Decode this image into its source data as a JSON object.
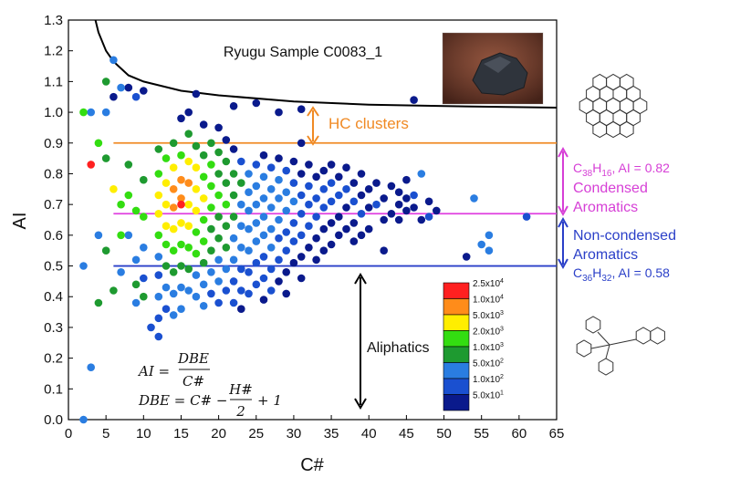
{
  "chart_data": {
    "type": "scatter",
    "title": "Ryugu Sample C0083_1",
    "xlabel": "C#",
    "ylabel": "AI",
    "xlim": [
      0,
      65
    ],
    "ylim": [
      0,
      1.3
    ],
    "xticks": [
      "0",
      "5",
      "10",
      "15",
      "20",
      "25",
      "30",
      "35",
      "40",
      "45",
      "50",
      "55",
      "60",
      "65"
    ],
    "yticks": [
      "0.0",
      "0.1",
      "0.2",
      "0.3",
      "0.4",
      "0.5",
      "0.6",
      "0.7",
      "0.8",
      "0.9",
      "1.0",
      "1.1",
      "1.2",
      "1.3"
    ],
    "reference_lines": [
      {
        "name": "HC clusters threshold",
        "y": 0.9,
        "x_start": 6,
        "color": "#f08a24"
      },
      {
        "name": "Condensed aromatics threshold",
        "y": 0.67,
        "x_start": 6,
        "color": "#e040e0"
      },
      {
        "name": "Aromatics threshold",
        "y": 0.5,
        "x_start": 6,
        "color": "#2a3fc8"
      }
    ],
    "boundary_curve": {
      "name": "upper limit",
      "color": "#000000",
      "points": [
        [
          3.6,
          1.3
        ],
        [
          4,
          1.26
        ],
        [
          5,
          1.2
        ],
        [
          6,
          1.165
        ],
        [
          8,
          1.12
        ],
        [
          10,
          1.1
        ],
        [
          15,
          1.07
        ],
        [
          20,
          1.055
        ],
        [
          30,
          1.035
        ],
        [
          40,
          1.025
        ],
        [
          50,
          1.02
        ],
        [
          65,
          1.015
        ]
      ]
    },
    "legend": {
      "title": "",
      "placement": "bottom-right",
      "entries": [
        {
          "label": "2.5x10",
          "exp": "4",
          "color": "#ff2020"
        },
        {
          "label": "1.0x10",
          "exp": "4",
          "color": "#ff8c1a"
        },
        {
          "label": "5.0x10",
          "exp": "3",
          "color": "#ffee00"
        },
        {
          "label": "2.0x10",
          "exp": "3",
          "color": "#33dd11"
        },
        {
          "label": "1.0x10",
          "exp": "3",
          "color": "#1e9a30"
        },
        {
          "label": "5.0x10",
          "exp": "2",
          "color": "#2a7de1"
        },
        {
          "label": "1.0x10",
          "exp": "2",
          "color": "#1a50d0"
        },
        {
          "label": "5.0x10",
          "exp": "1",
          "color": "#0a1a8c"
        }
      ]
    },
    "points": [
      [
        2,
        1.0,
        "#33dd11"
      ],
      [
        3,
        1.0,
        "#2a7de1"
      ],
      [
        3,
        0.83,
        "#ff2020"
      ],
      [
        2,
        0.5,
        "#2a7de1"
      ],
      [
        2,
        0.0,
        "#2a7de1"
      ],
      [
        3,
        0.17,
        "#2a7de1"
      ],
      [
        4,
        0.38,
        "#1e9a30"
      ],
      [
        5,
        1.1,
        "#1e9a30"
      ],
      [
        6,
        1.17,
        "#2a7de1"
      ],
      [
        5,
        1.0,
        "#2a7de1"
      ],
      [
        6,
        1.05,
        "#0a1a8c"
      ],
      [
        7,
        1.08,
        "#2a7de1"
      ],
      [
        8,
        1.08,
        "#0a1a8c"
      ],
      [
        9,
        1.05,
        "#1a50d0"
      ],
      [
        10,
        1.07,
        "#0a1a8c"
      ],
      [
        4,
        0.9,
        "#33dd11"
      ],
      [
        5,
        0.85,
        "#1e9a30"
      ],
      [
        4,
        0.6,
        "#2a7de1"
      ],
      [
        5,
        0.55,
        "#1e9a30"
      ],
      [
        6,
        0.75,
        "#ffee00"
      ],
      [
        6,
        0.42,
        "#1e9a30"
      ],
      [
        7,
        0.7,
        "#33dd11"
      ],
      [
        7,
        0.6,
        "#33dd11"
      ],
      [
        7,
        0.48,
        "#2a7de1"
      ],
      [
        8,
        0.83,
        "#1e9a30"
      ],
      [
        8,
        0.73,
        "#33dd11"
      ],
      [
        8,
        0.6,
        "#2a7de1"
      ],
      [
        9,
        0.68,
        "#33dd11"
      ],
      [
        9,
        0.52,
        "#2a7de1"
      ],
      [
        9,
        0.44,
        "#1e9a30"
      ],
      [
        9,
        0.38,
        "#2a7de1"
      ],
      [
        10,
        0.78,
        "#1e9a30"
      ],
      [
        10,
        0.66,
        "#33dd11"
      ],
      [
        10,
        0.56,
        "#2a7de1"
      ],
      [
        10,
        0.46,
        "#1a50d0"
      ],
      [
        10,
        0.4,
        "#1e9a30"
      ],
      [
        11,
        0.3,
        "#1a50d0"
      ],
      [
        12,
        0.27,
        "#1a50d0"
      ],
      [
        12,
        0.88,
        "#1e9a30"
      ],
      [
        12,
        0.8,
        "#33dd11"
      ],
      [
        12,
        0.73,
        "#ffee00"
      ],
      [
        12,
        0.67,
        "#ffee00"
      ],
      [
        12,
        0.6,
        "#33dd11"
      ],
      [
        12,
        0.53,
        "#2a7de1"
      ],
      [
        12,
        0.47,
        "#1a50d0"
      ],
      [
        12,
        0.4,
        "#2a7de1"
      ],
      [
        12,
        0.33,
        "#1a50d0"
      ],
      [
        13,
        0.85,
        "#33dd11"
      ],
      [
        13,
        0.77,
        "#ffee00"
      ],
      [
        13,
        0.7,
        "#ffee00"
      ],
      [
        13,
        0.63,
        "#ffee00"
      ],
      [
        13,
        0.57,
        "#33dd11"
      ],
      [
        13,
        0.5,
        "#1e9a30"
      ],
      [
        13,
        0.43,
        "#2a7de1"
      ],
      [
        13,
        0.36,
        "#1a50d0"
      ],
      [
        14,
        0.9,
        "#1e9a30"
      ],
      [
        14,
        0.82,
        "#ffee00"
      ],
      [
        14,
        0.75,
        "#ff8c1a"
      ],
      [
        14,
        0.69,
        "#ff8c1a"
      ],
      [
        14,
        0.62,
        "#ffee00"
      ],
      [
        14,
        0.55,
        "#33dd11"
      ],
      [
        14,
        0.48,
        "#1e9a30"
      ],
      [
        14,
        0.41,
        "#2a7de1"
      ],
      [
        14,
        0.34,
        "#2a7de1"
      ],
      [
        15,
        0.98,
        "#0a1a8c"
      ],
      [
        15,
        0.86,
        "#33dd11"
      ],
      [
        15,
        0.78,
        "#ff8c1a"
      ],
      [
        15,
        0.72,
        "#ff8c1a"
      ],
      [
        15,
        0.7,
        "#ff2020"
      ],
      [
        15,
        0.64,
        "#ffee00"
      ],
      [
        15,
        0.57,
        "#33dd11"
      ],
      [
        15,
        0.5,
        "#1e9a30"
      ],
      [
        15,
        0.43,
        "#2a7de1"
      ],
      [
        15,
        0.36,
        "#2a7de1"
      ],
      [
        16,
        1.0,
        "#0a1a8c"
      ],
      [
        16,
        0.93,
        "#1e9a30"
      ],
      [
        16,
        0.84,
        "#ffee00"
      ],
      [
        16,
        0.77,
        "#ff8c1a"
      ],
      [
        16,
        0.7,
        "#ffee00"
      ],
      [
        16,
        0.63,
        "#ffee00"
      ],
      [
        16,
        0.56,
        "#33dd11"
      ],
      [
        16,
        0.49,
        "#1e9a30"
      ],
      [
        16,
        0.42,
        "#2a7de1"
      ],
      [
        17,
        0.89,
        "#1e9a30"
      ],
      [
        17,
        0.82,
        "#ffee00"
      ],
      [
        17,
        0.75,
        "#ffee00"
      ],
      [
        17,
        0.68,
        "#ffee00"
      ],
      [
        17,
        0.61,
        "#33dd11"
      ],
      [
        17,
        0.54,
        "#33dd11"
      ],
      [
        17,
        0.47,
        "#2a7de1"
      ],
      [
        17,
        0.4,
        "#2a7de1"
      ],
      [
        18,
        0.96,
        "#0a1a8c"
      ],
      [
        18,
        0.86,
        "#1e9a30"
      ],
      [
        18,
        0.79,
        "#33dd11"
      ],
      [
        18,
        0.72,
        "#ffee00"
      ],
      [
        18,
        0.65,
        "#33dd11"
      ],
      [
        18,
        0.58,
        "#33dd11"
      ],
      [
        18,
        0.51,
        "#1e9a30"
      ],
      [
        18,
        0.44,
        "#2a7de1"
      ],
      [
        18,
        0.37,
        "#2a7de1"
      ],
      [
        19,
        0.9,
        "#1e9a30"
      ],
      [
        19,
        0.83,
        "#33dd11"
      ],
      [
        19,
        0.76,
        "#33dd11"
      ],
      [
        19,
        0.69,
        "#33dd11"
      ],
      [
        19,
        0.62,
        "#1e9a30"
      ],
      [
        19,
        0.55,
        "#1e9a30"
      ],
      [
        19,
        0.48,
        "#2a7de1"
      ],
      [
        19,
        0.41,
        "#1a50d0"
      ],
      [
        20,
        0.95,
        "#0a1a8c"
      ],
      [
        20,
        0.87,
        "#1e9a30"
      ],
      [
        20,
        0.8,
        "#1e9a30"
      ],
      [
        20,
        0.73,
        "#33dd11"
      ],
      [
        20,
        0.66,
        "#1e9a30"
      ],
      [
        20,
        0.59,
        "#1e9a30"
      ],
      [
        20,
        0.52,
        "#2a7de1"
      ],
      [
        20,
        0.45,
        "#2a7de1"
      ],
      [
        20,
        0.38,
        "#1a50d0"
      ],
      [
        21,
        0.91,
        "#0a1a8c"
      ],
      [
        21,
        0.84,
        "#1e9a30"
      ],
      [
        21,
        0.77,
        "#1e9a30"
      ],
      [
        21,
        0.7,
        "#33dd11"
      ],
      [
        21,
        0.63,
        "#1e9a30"
      ],
      [
        21,
        0.56,
        "#1e9a30"
      ],
      [
        21,
        0.49,
        "#2a7de1"
      ],
      [
        21,
        0.42,
        "#1a50d0"
      ],
      [
        22,
        0.88,
        "#0a1a8c"
      ],
      [
        22,
        0.8,
        "#1e9a30"
      ],
      [
        22,
        0.73,
        "#1e9a30"
      ],
      [
        22,
        0.66,
        "#1e9a30"
      ],
      [
        22,
        0.59,
        "#2a7de1"
      ],
      [
        22,
        0.52,
        "#2a7de1"
      ],
      [
        22,
        0.45,
        "#1a50d0"
      ],
      [
        22,
        0.38,
        "#1a50d0"
      ],
      [
        23,
        0.84,
        "#1a50d0"
      ],
      [
        23,
        0.77,
        "#1e9a30"
      ],
      [
        23,
        0.7,
        "#2a7de1"
      ],
      [
        23,
        0.63,
        "#2a7de1"
      ],
      [
        23,
        0.56,
        "#2a7de1"
      ],
      [
        23,
        0.49,
        "#1a50d0"
      ],
      [
        23,
        0.42,
        "#1a50d0"
      ],
      [
        23,
        0.36,
        "#0a1a8c"
      ],
      [
        24,
        0.8,
        "#2a7de1"
      ],
      [
        24,
        0.74,
        "#2a7de1"
      ],
      [
        24,
        0.68,
        "#2a7de1"
      ],
      [
        24,
        0.62,
        "#2a7de1"
      ],
      [
        24,
        0.55,
        "#2a7de1"
      ],
      [
        24,
        0.48,
        "#1a50d0"
      ],
      [
        24,
        0.41,
        "#1a50d0"
      ],
      [
        25,
        0.83,
        "#1a50d0"
      ],
      [
        25,
        0.76,
        "#2a7de1"
      ],
      [
        25,
        0.7,
        "#2a7de1"
      ],
      [
        25,
        0.64,
        "#2a7de1"
      ],
      [
        25,
        0.58,
        "#2a7de1"
      ],
      [
        25,
        0.51,
        "#1a50d0"
      ],
      [
        25,
        0.44,
        "#1a50d0"
      ],
      [
        26,
        0.86,
        "#0a1a8c"
      ],
      [
        26,
        0.79,
        "#2a7de1"
      ],
      [
        26,
        0.72,
        "#2a7de1"
      ],
      [
        26,
        0.66,
        "#2a7de1"
      ],
      [
        26,
        0.6,
        "#2a7de1"
      ],
      [
        26,
        0.53,
        "#1a50d0"
      ],
      [
        26,
        0.46,
        "#1a50d0"
      ],
      [
        26,
        0.39,
        "#0a1a8c"
      ],
      [
        27,
        0.82,
        "#1a50d0"
      ],
      [
        27,
        0.75,
        "#2a7de1"
      ],
      [
        27,
        0.69,
        "#2a7de1"
      ],
      [
        27,
        0.62,
        "#2a7de1"
      ],
      [
        27,
        0.56,
        "#2a7de1"
      ],
      [
        27,
        0.49,
        "#1a50d0"
      ],
      [
        27,
        0.42,
        "#1a50d0"
      ],
      [
        28,
        0.85,
        "#0a1a8c"
      ],
      [
        28,
        0.78,
        "#2a7de1"
      ],
      [
        28,
        0.72,
        "#2a7de1"
      ],
      [
        28,
        0.65,
        "#2a7de1"
      ],
      [
        28,
        0.59,
        "#1a50d0"
      ],
      [
        28,
        0.52,
        "#1a50d0"
      ],
      [
        28,
        0.45,
        "#0a1a8c"
      ],
      [
        29,
        0.81,
        "#1a50d0"
      ],
      [
        29,
        0.74,
        "#2a7de1"
      ],
      [
        29,
        0.68,
        "#2a7de1"
      ],
      [
        29,
        0.61,
        "#1a50d0"
      ],
      [
        29,
        0.55,
        "#1a50d0"
      ],
      [
        29,
        0.48,
        "#0a1a8c"
      ],
      [
        29,
        0.41,
        "#0a1a8c"
      ],
      [
        30,
        0.84,
        "#0a1a8c"
      ],
      [
        30,
        0.77,
        "#1a50d0"
      ],
      [
        30,
        0.71,
        "#2a7de1"
      ],
      [
        30,
        0.64,
        "#1a50d0"
      ],
      [
        30,
        0.58,
        "#1a50d0"
      ],
      [
        30,
        0.51,
        "#0a1a8c"
      ],
      [
        31,
        0.9,
        "#0a1a8c"
      ],
      [
        31,
        0.8,
        "#0a1a8c"
      ],
      [
        31,
        0.73,
        "#1a50d0"
      ],
      [
        31,
        0.67,
        "#1a50d0"
      ],
      [
        31,
        0.6,
        "#1a50d0"
      ],
      [
        31,
        0.53,
        "#0a1a8c"
      ],
      [
        31,
        0.46,
        "#0a1a8c"
      ],
      [
        32,
        0.83,
        "#0a1a8c"
      ],
      [
        32,
        0.76,
        "#1a50d0"
      ],
      [
        32,
        0.7,
        "#1a50d0"
      ],
      [
        32,
        0.63,
        "#1a50d0"
      ],
      [
        32,
        0.56,
        "#0a1a8c"
      ],
      [
        33,
        0.79,
        "#0a1a8c"
      ],
      [
        33,
        0.72,
        "#1a50d0"
      ],
      [
        33,
        0.66,
        "#1a50d0"
      ],
      [
        33,
        0.59,
        "#0a1a8c"
      ],
      [
        33,
        0.52,
        "#0a1a8c"
      ],
      [
        34,
        0.81,
        "#0a1a8c"
      ],
      [
        34,
        0.75,
        "#1a50d0"
      ],
      [
        34,
        0.69,
        "#1a50d0"
      ],
      [
        34,
        0.62,
        "#0a1a8c"
      ],
      [
        34,
        0.55,
        "#0a1a8c"
      ],
      [
        35,
        0.83,
        "#0a1a8c"
      ],
      [
        35,
        0.77,
        "#1a50d0"
      ],
      [
        35,
        0.71,
        "#1a50d0"
      ],
      [
        35,
        0.64,
        "#0a1a8c"
      ],
      [
        35,
        0.57,
        "#0a1a8c"
      ],
      [
        36,
        0.79,
        "#0a1a8c"
      ],
      [
        36,
        0.73,
        "#1a50d0"
      ],
      [
        36,
        0.66,
        "#0a1a8c"
      ],
      [
        36,
        0.6,
        "#0a1a8c"
      ],
      [
        37,
        0.82,
        "#0a1a8c"
      ],
      [
        37,
        0.75,
        "#1a50d0"
      ],
      [
        37,
        0.69,
        "#0a1a8c"
      ],
      [
        37,
        0.62,
        "#0a1a8c"
      ],
      [
        38,
        0.77,
        "#0a1a8c"
      ],
      [
        38,
        0.71,
        "#1a50d0"
      ],
      [
        38,
        0.64,
        "#0a1a8c"
      ],
      [
        38,
        0.58,
        "#0a1a8c"
      ],
      [
        39,
        0.8,
        "#0a1a8c"
      ],
      [
        39,
        0.73,
        "#0a1a8c"
      ],
      [
        39,
        0.67,
        "#1a50d0"
      ],
      [
        39,
        0.6,
        "#0a1a8c"
      ],
      [
        40,
        0.75,
        "#0a1a8c"
      ],
      [
        40,
        0.69,
        "#0a1a8c"
      ],
      [
        40,
        0.62,
        "#0a1a8c"
      ],
      [
        41,
        0.77,
        "#0a1a8c"
      ],
      [
        41,
        0.7,
        "#1a50d0"
      ],
      [
        42,
        0.72,
        "#0a1a8c"
      ],
      [
        42,
        0.65,
        "#0a1a8c"
      ],
      [
        42,
        0.55,
        "#0a1a8c"
      ],
      [
        43,
        0.76,
        "#0a1a8c"
      ],
      [
        43,
        0.67,
        "#0a1a8c"
      ],
      [
        44,
        0.74,
        "#0a1a8c"
      ],
      [
        44,
        0.7,
        "#0a1a8c"
      ],
      [
        44,
        0.65,
        "#0a1a8c"
      ],
      [
        45,
        0.78,
        "#0a1a8c"
      ],
      [
        45,
        0.72,
        "#0a1a8c"
      ],
      [
        45,
        0.68,
        "#0a1a8c"
      ],
      [
        46,
        0.69,
        "#0a1a8c"
      ],
      [
        46,
        0.73,
        "#1a50d0"
      ],
      [
        47,
        0.8,
        "#2a7de1"
      ],
      [
        47,
        0.65,
        "#0a1a8c"
      ],
      [
        48,
        0.71,
        "#0a1a8c"
      ],
      [
        48,
        0.66,
        "#1a50d0"
      ],
      [
        49,
        0.68,
        "#0a1a8c"
      ],
      [
        46,
        1.04,
        "#0a1a8c"
      ],
      [
        53,
        0.53,
        "#0a1a8c"
      ],
      [
        54,
        0.72,
        "#2a7de1"
      ],
      [
        55,
        0.57,
        "#2a7de1"
      ],
      [
        56,
        0.6,
        "#2a7de1"
      ],
      [
        56,
        0.55,
        "#2a7de1"
      ],
      [
        61,
        0.66,
        "#1a50d0"
      ],
      [
        28,
        1.0,
        "#0a1a8c"
      ],
      [
        22,
        1.02,
        "#0a1a8c"
      ],
      [
        25,
        1.03,
        "#0a1a8c"
      ],
      [
        31,
        1.01,
        "#0a1a8c"
      ],
      [
        17,
        1.06,
        "#0a1a8c"
      ]
    ]
  },
  "annotations": {
    "hc_clusters": "HC clusters",
    "condensed_formula_c": "C",
    "condensed_formula_c_sub": "38",
    "condensed_formula_h": "H",
    "condensed_formula_h_sub": "16",
    "condensed_formula_ai": ", AI = 0.82",
    "condensed_line1": "Condensed",
    "condensed_line2": "Aromatics",
    "noncondensed_line1": "Non-condensed",
    "noncondensed_line2": "Aromatics",
    "noncondensed_formula_c": "C",
    "noncondensed_formula_c_sub": "36",
    "noncondensed_formula_h": "H",
    "noncondensed_formula_h_sub": "32",
    "noncondensed_formula_ai": ", AI = 0.58",
    "aliphatics": "Aliphatics"
  },
  "formulas": {
    "ai_lhs": "AI =",
    "ai_num": "DBE",
    "ai_den": "C#",
    "dbe_lhs": "DBE = C# −",
    "dbe_num": "H#",
    "dbe_den": "2",
    "dbe_tail": "+ 1"
  },
  "colors": {
    "hc": "#f08a24",
    "condensed": "#d63fd6",
    "aromatic": "#2a3fc8",
    "boundary": "#000000"
  }
}
